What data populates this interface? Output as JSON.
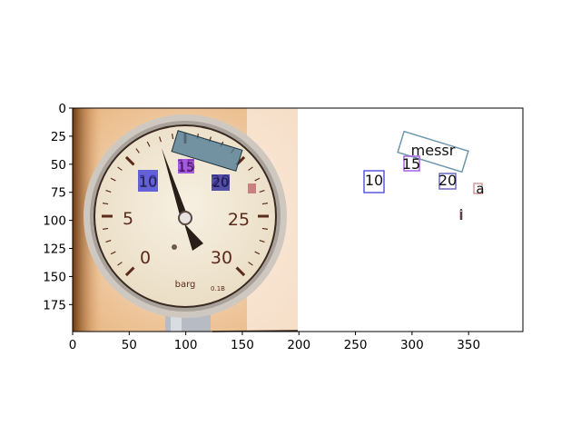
{
  "figure": {
    "x_ticks": [
      "0",
      "50",
      "100",
      "150",
      "200",
      "250",
      "300",
      "350"
    ],
    "y_ticks": [
      "0",
      "25",
      "50",
      "75",
      "100",
      "125",
      "150",
      "175"
    ],
    "xlim": [
      0,
      398
    ],
    "ylim": [
      199,
      0
    ],
    "axis_color": "#000000",
    "background": "#ffffff"
  },
  "photo": {
    "subject": "pressure-gauge-photo",
    "dial_numbers": [
      "0",
      "5",
      "10",
      "15",
      "20",
      "25",
      "30"
    ],
    "unit_text": "barg",
    "model_text": "0.1B",
    "colors": {
      "face": "#f1e6d0",
      "rim": "#c8c2bb",
      "needle": "#2a1e18",
      "backdrop_warm": "#e0a76a",
      "backdrop_light": "#f6ddc2"
    }
  },
  "detections": [
    {
      "text": "10",
      "color": "#3b3bd9"
    },
    {
      "text": "15",
      "color": "#8a2be2"
    },
    {
      "text": "20",
      "color": "#2a2a9a"
    },
    {
      "text": "messr",
      "color": "#4f7a94"
    },
    {
      "text": "a",
      "color": "#c07070"
    }
  ],
  "predicted_labels": [
    {
      "text": "messr",
      "box_color": "#6f96ad"
    },
    {
      "text": "15",
      "box_color": "#a463e0"
    },
    {
      "text": "10",
      "box_color": "#5a5ae0"
    },
    {
      "text": "20",
      "box_color": "#6a6ac8"
    },
    {
      "text": "a",
      "box_color": "#d49a9a"
    },
    {
      "text": "i",
      "box_color": "#b06f8a"
    }
  ]
}
